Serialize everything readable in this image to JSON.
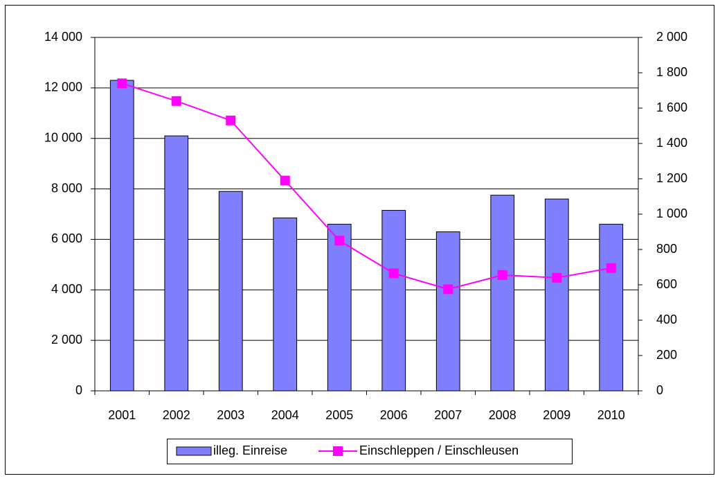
{
  "chart_data": {
    "type": "bar-line",
    "categories": [
      "2001",
      "2002",
      "2003",
      "2004",
      "2005",
      "2006",
      "2007",
      "2008",
      "2009",
      "2010"
    ],
    "series": [
      {
        "name": "illeg. Einreise",
        "type": "bar",
        "color": "#8080ff",
        "values": [
          12300,
          10100,
          7900,
          6850,
          6600,
          7150,
          6300,
          7750,
          7600,
          6600
        ]
      },
      {
        "name": "Einschleppen / Einschleusen",
        "type": "line",
        "axis": "y2",
        "color": "#ff00ff",
        "values": [
          1740,
          1640,
          1530,
          1190,
          850,
          665,
          575,
          655,
          640,
          695
        ]
      }
    ],
    "ylim": [
      0,
      14000
    ],
    "yticks": [
      0,
      {
        "value": 2000,
        "label": "2 000"
      },
      {
        "value": 4000,
        "label": "4 000"
      },
      {
        "value": 6000,
        "label": "6 000"
      },
      {
        "value": 8000,
        "label": "8 000"
      },
      {
        "value": 10000,
        "label": "10 000"
      },
      {
        "value": 12000,
        "label": "12 000"
      },
      {
        "value": 14000,
        "label": "14 000"
      }
    ],
    "y2lim": [
      0,
      2000
    ],
    "y2ticks": [
      0,
      200,
      400,
      600,
      800,
      {
        "value": 1000,
        "label": "1 000"
      },
      {
        "value": 1200,
        "label": "1 200"
      },
      {
        "value": 1400,
        "label": "1 400"
      },
      {
        "value": 1600,
        "label": "1 600"
      },
      {
        "value": 1800,
        "label": "1 800"
      },
      {
        "value": 2000,
        "label": "2 000"
      }
    ],
    "grid": true,
    "legend": "bottom"
  }
}
